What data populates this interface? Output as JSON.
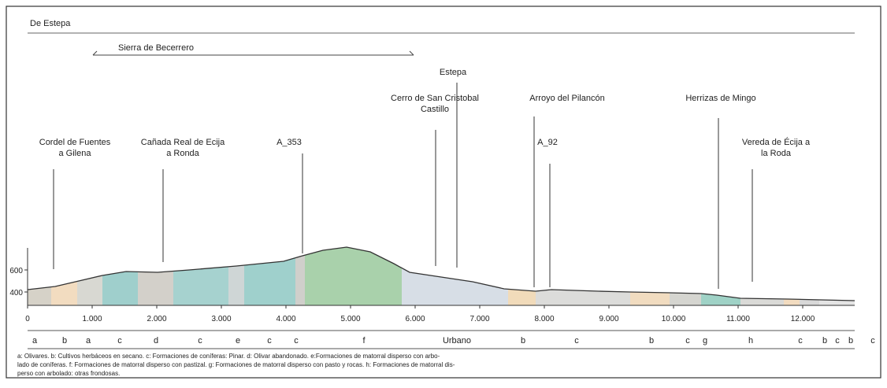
{
  "header": {
    "title": "De Estepa",
    "range_label": "Sierra de Becerrero"
  },
  "places": [
    {
      "lines": [
        "Cordel de Fuentes",
        "a Gilena"
      ]
    },
    {
      "lines": [
        "Cañada Real de Ecija",
        "a Ronda"
      ]
    },
    {
      "lines": [
        "A_353"
      ]
    },
    {
      "lines": [
        "Cerro de San Cristobal",
        "Castillo"
      ]
    },
    {
      "lines": [
        "Estepa"
      ]
    },
    {
      "lines": [
        "Arroyo del Pilancón"
      ]
    },
    {
      "lines": [
        "A_92"
      ]
    },
    {
      "lines": [
        "Herrizas de Mingo"
      ]
    },
    {
      "lines": [
        "Vereda de Écija a",
        "la Roda"
      ]
    }
  ],
  "xticks": [
    0,
    {
      "value": 1000,
      "label": "1.000"
    },
    {
      "value": 2000,
      "label": "2.000"
    },
    {
      "value": 3000,
      "label": "3.000"
    },
    {
      "value": 4000,
      "label": "4.000"
    },
    {
      "value": 5000,
      "label": "5.000"
    },
    {
      "value": 6000,
      "label": "6.000"
    },
    {
      "value": 7000,
      "label": "7.000"
    },
    {
      "value": 8000,
      "label": "8.000"
    },
    {
      "value": 9000,
      "label": "9.000"
    },
    {
      "value": 10000,
      "label": "10.000"
    },
    {
      "value": 11000,
      "label": "11.000"
    },
    {
      "value": 12000,
      "label": "12.000"
    }
  ],
  "yticks": [
    400,
    600
  ],
  "segments": [
    "a",
    "b",
    "a",
    "c",
    "d",
    "c",
    "e",
    "c",
    "c",
    "f",
    "Urbano",
    "b",
    "c",
    "b",
    "c",
    "g",
    "h",
    "c",
    "b",
    "c",
    "b",
    "c"
  ],
  "legend": [
    "a: Olivares.        b: Cultivos herbáceos en secano.        c: Formaciones de coníferas: Pinar.        d: Olivar abandonado.        e:Formaciones de matorral disperso con arbo-",
    "lado de coníferas.        f: Formaciones de matorral disperso con pastizal.        g: Formaciones de matorral disperso con pasto y rocas.        h: Formaciones de matorral dis-",
    "perso con arbolado: otras frondosas."
  ]
}
